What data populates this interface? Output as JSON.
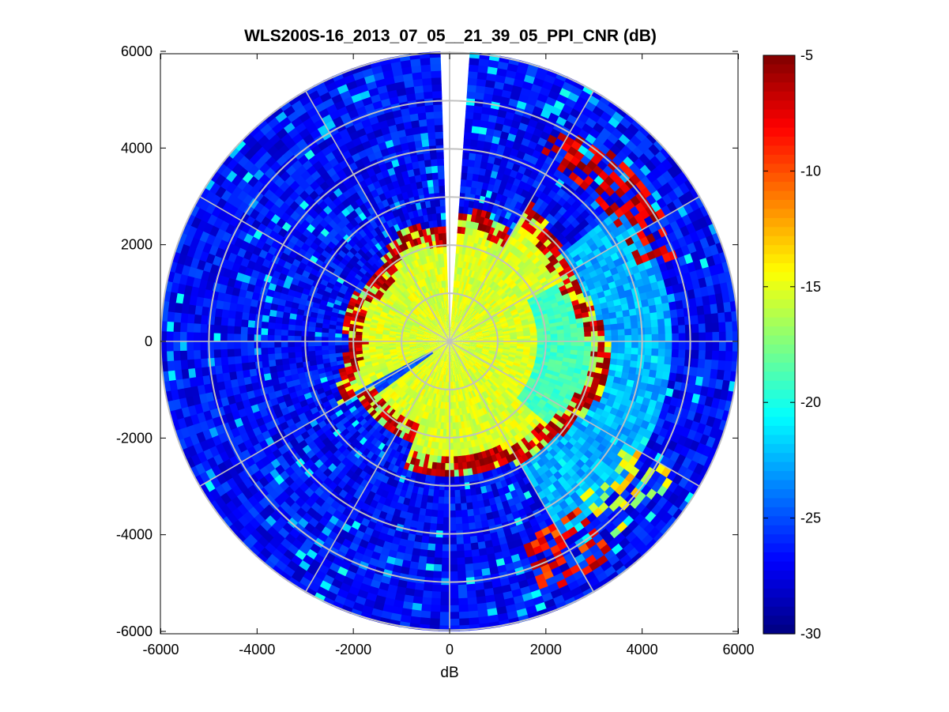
{
  "chart_data": {
    "type": "heatmap",
    "subtype": "polar-ppi",
    "title": "WLS200S-16_2013_07_05__21_39_05_PPI_CNR (dB)",
    "xlabel": "dB",
    "ylabel": "",
    "xlim": [
      -6000,
      6000
    ],
    "ylim": [
      -6000,
      6000
    ],
    "xticks": [
      -6000,
      -4000,
      -2000,
      0,
      2000,
      4000,
      6000
    ],
    "yticks": [
      6000,
      4000,
      2000,
      0,
      -2000,
      -4000,
      -6000
    ],
    "range_rings": [
      1000,
      2000,
      3000,
      4000,
      5000,
      6000
    ],
    "radial_spokes_deg": [
      0,
      30,
      60,
      90,
      120,
      150,
      180,
      210,
      240,
      270,
      300,
      330
    ],
    "max_range": 6000,
    "colorbar": {
      "colormap": "jet",
      "limits": [
        -30,
        -5
      ],
      "ticks": [
        -5,
        -10,
        -15,
        -20,
        -25,
        -30
      ]
    },
    "features": [
      {
        "region": "near field r<2000",
        "cnr_db": -16
      },
      {
        "region": "aerosol edge ring r~2000-3000",
        "cnr_db": -5
      },
      {
        "region": "east sector r 3000-5000",
        "cnr_db": -21
      },
      {
        "region": "far field r>3000",
        "cnr_db": -26
      },
      {
        "region": "northeast ridge r~4800",
        "cnr_db": -6
      },
      {
        "region": "southeast cluster r~5000",
        "cnr_db": -7
      },
      {
        "region": "north blind sector",
        "cnr_db": null
      }
    ]
  }
}
